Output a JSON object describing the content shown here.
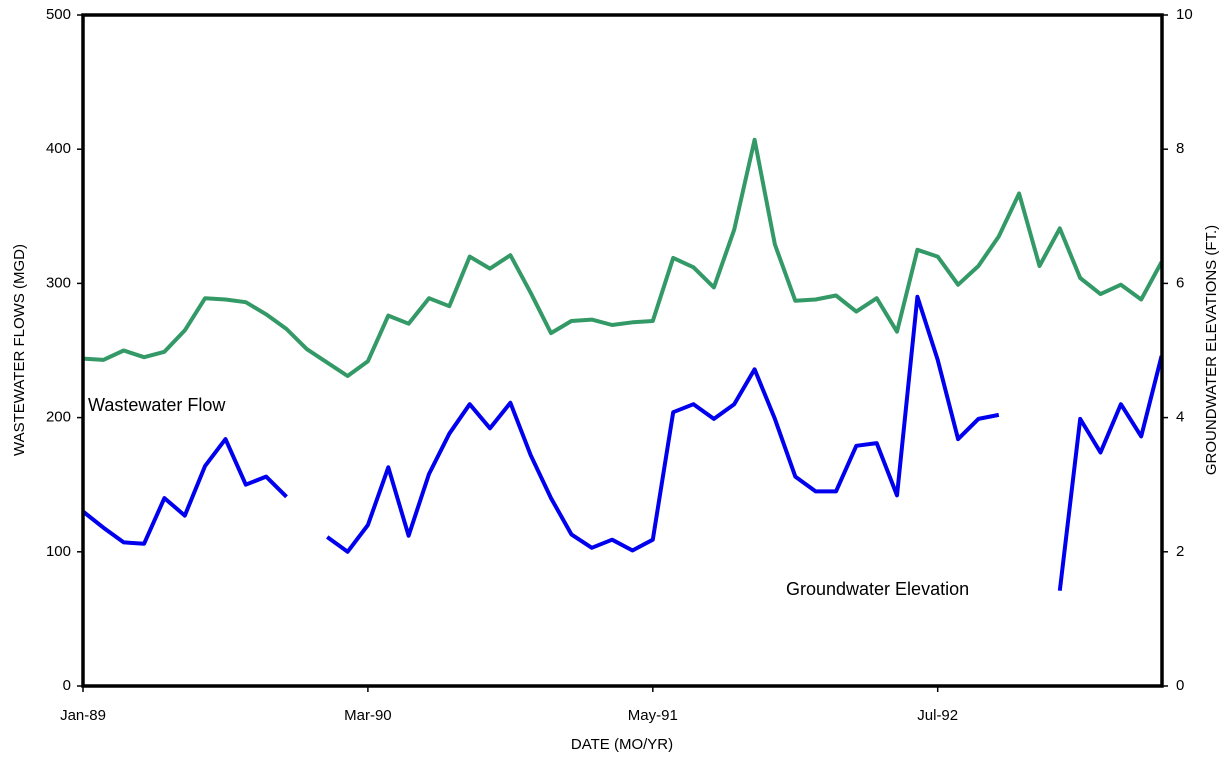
{
  "chart_data": {
    "type": "line",
    "x_label": "DATE (MO/YR)",
    "y_label": "WASTEWATER FLOWS (MGD)",
    "y2_label": "GROUNDWATER ELEVATIONS (FT.)",
    "annotations": [
      "Wastewater Flow",
      "Groundwater Elevation"
    ],
    "categories": [
      "Jan-89",
      null,
      null,
      null,
      null,
      null,
      null,
      null,
      null,
      null,
      null,
      null,
      null,
      null,
      "Mar-90",
      null,
      null,
      null,
      null,
      null,
      null,
      null,
      null,
      null,
      null,
      null,
      null,
      null,
      "May-91",
      null,
      null,
      null,
      null,
      null,
      null,
      null,
      null,
      null,
      null,
      null,
      null,
      null,
      "Jul-92",
      null,
      null,
      null,
      null,
      null,
      null,
      null,
      null,
      null,
      null,
      null
    ],
    "ylim": [
      0,
      500
    ],
    "yticks": [
      0,
      100,
      200,
      300,
      400,
      500
    ],
    "y2lim": [
      0,
      10
    ],
    "y2ticks": [
      0,
      2,
      4,
      6,
      8,
      10
    ],
    "series": [
      {
        "name": "Wastewater Flow",
        "color": "#339966",
        "values": [
          244,
          243,
          250,
          245,
          249,
          265,
          289,
          288,
          286,
          277,
          266,
          251,
          241,
          231,
          242,
          276,
          270,
          289,
          283,
          320,
          311,
          321,
          293,
          263,
          272,
          273,
          269,
          271,
          272,
          319,
          312,
          297,
          340,
          407,
          329,
          287,
          288,
          291,
          279,
          289,
          264,
          325,
          320,
          299,
          313,
          335,
          367,
          313,
          341,
          304,
          292,
          299,
          288,
          316
        ]
      },
      {
        "name": "Groundwater Elevation",
        "color": "#0000ee",
        "axis": "y2",
        "values": [
          2.6,
          2.36,
          2.14,
          2.12,
          2.8,
          2.54,
          3.28,
          3.68,
          3.0,
          3.12,
          2.82,
          null,
          2.22,
          2.0,
          2.4,
          3.26,
          2.24,
          3.16,
          3.76,
          4.2,
          3.84,
          4.22,
          3.44,
          2.8,
          2.26,
          2.06,
          2.18,
          2.02,
          2.18,
          4.08,
          4.2,
          3.98,
          4.2,
          4.72,
          3.98,
          3.12,
          2.9,
          2.9,
          3.58,
          3.62,
          2.84,
          5.8,
          4.86,
          3.68,
          3.98,
          4.04,
          null,
          null,
          1.42,
          3.98,
          3.48,
          4.2,
          3.72,
          4.92
        ]
      }
    ]
  }
}
